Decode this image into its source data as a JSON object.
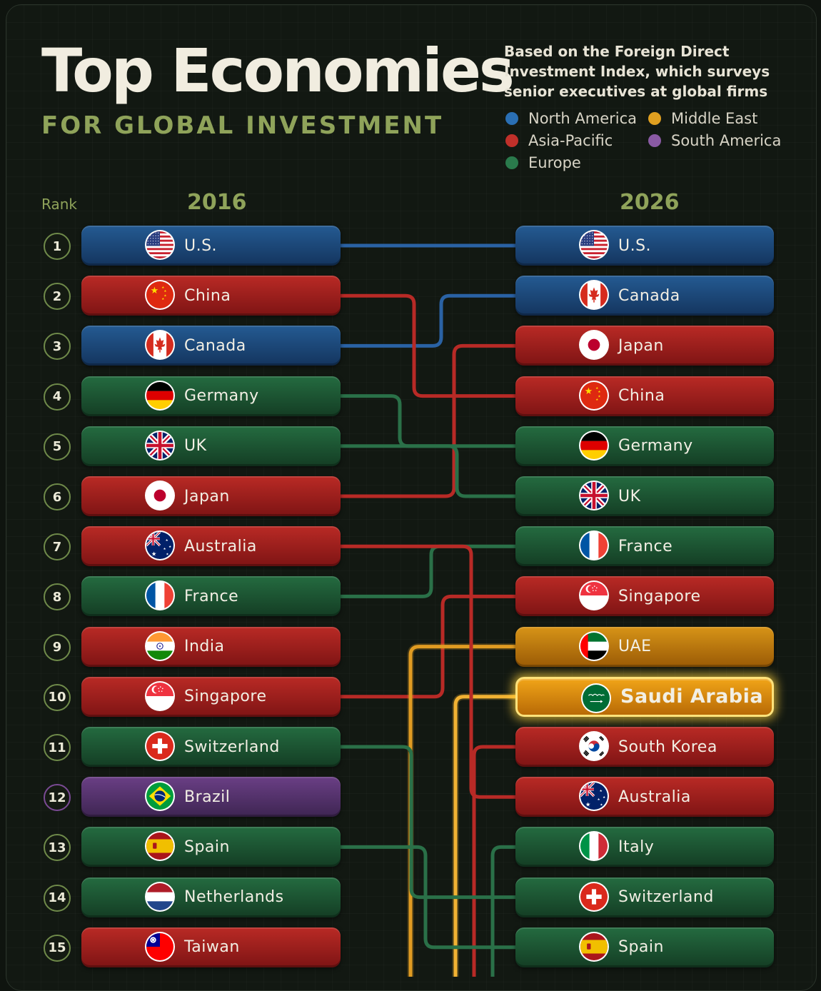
{
  "title": "Top Economies",
  "subtitle": "FOR GLOBAL INVESTMENT",
  "note": "Based on the Foreign Direct Investment Index, which surveys senior executives at global firms",
  "colors": {
    "North America": "#1d4a7e",
    "Asia-Pacific": "#a8201f",
    "Europe": "#1f5a35",
    "Middle East": "#c98512",
    "South America": "#5a3470"
  },
  "line_colors": {
    "North America": "#2a62a4",
    "Asia-Pacific": "#b82a26",
    "Europe": "#2a7048",
    "Middle East": "#e09b22",
    "South America": "#7a4a94"
  },
  "chart_data": {
    "type": "table",
    "title": "Top Economies",
    "subtitle": "FOR GLOBAL INVESTMENT",
    "rank_header": "Rank",
    "col_2016": "2016",
    "col_2026": "2026",
    "legend": [
      {
        "name": "North America",
        "color": "#2a6fb4"
      },
      {
        "name": "Middle East",
        "color": "#e0a020"
      },
      {
        "name": "Asia-Pacific",
        "color": "#c0302a"
      },
      {
        "name": "South America",
        "color": "#8a5aa4"
      },
      {
        "name": "Europe",
        "color": "#2a7a4c"
      }
    ],
    "ranks": [
      "1",
      "2",
      "3",
      "4",
      "5",
      "6",
      "7",
      "8",
      "9",
      "10",
      "11",
      "12",
      "13",
      "14",
      "15"
    ],
    "rank_2016": [
      {
        "country": "U.S.",
        "region": "North America",
        "flag": "us"
      },
      {
        "country": "China",
        "region": "Asia-Pacific",
        "flag": "cn"
      },
      {
        "country": "Canada",
        "region": "North America",
        "flag": "ca"
      },
      {
        "country": "Germany",
        "region": "Europe",
        "flag": "de"
      },
      {
        "country": "UK",
        "region": "Europe",
        "flag": "gb"
      },
      {
        "country": "Japan",
        "region": "Asia-Pacific",
        "flag": "jp"
      },
      {
        "country": "Australia",
        "region": "Asia-Pacific",
        "flag": "au"
      },
      {
        "country": "France",
        "region": "Europe",
        "flag": "fr"
      },
      {
        "country": "India",
        "region": "Asia-Pacific",
        "flag": "in"
      },
      {
        "country": "Singapore",
        "region": "Asia-Pacific",
        "flag": "sg"
      },
      {
        "country": "Switzerland",
        "region": "Europe",
        "flag": "ch"
      },
      {
        "country": "Brazil",
        "region": "South America",
        "flag": "br"
      },
      {
        "country": "Spain",
        "region": "Europe",
        "flag": "es"
      },
      {
        "country": "Netherlands",
        "region": "Europe",
        "flag": "nl"
      },
      {
        "country": "Taiwan",
        "region": "Asia-Pacific",
        "flag": "tw"
      }
    ],
    "rank_2026": [
      {
        "country": "U.S.",
        "region": "North America",
        "flag": "us"
      },
      {
        "country": "Canada",
        "region": "North America",
        "flag": "ca"
      },
      {
        "country": "Japan",
        "region": "Asia-Pacific",
        "flag": "jp"
      },
      {
        "country": "China",
        "region": "Asia-Pacific",
        "flag": "cn"
      },
      {
        "country": "Germany",
        "region": "Europe",
        "flag": "de"
      },
      {
        "country": "UK",
        "region": "Europe",
        "flag": "gb"
      },
      {
        "country": "France",
        "region": "Europe",
        "flag": "fr"
      },
      {
        "country": "Singapore",
        "region": "Asia-Pacific",
        "flag": "sg"
      },
      {
        "country": "UAE",
        "region": "Middle East",
        "flag": "ae"
      },
      {
        "country": "Saudi Arabia",
        "region": "Middle East",
        "flag": "sa",
        "highlight": true
      },
      {
        "country": "South Korea",
        "region": "Asia-Pacific",
        "flag": "kr"
      },
      {
        "country": "Australia",
        "region": "Asia-Pacific",
        "flag": "au"
      },
      {
        "country": "Italy",
        "region": "Europe",
        "flag": "it"
      },
      {
        "country": "Switzerland",
        "region": "Europe",
        "flag": "ch"
      },
      {
        "country": "Spain",
        "region": "Europe",
        "flag": "es"
      }
    ]
  }
}
